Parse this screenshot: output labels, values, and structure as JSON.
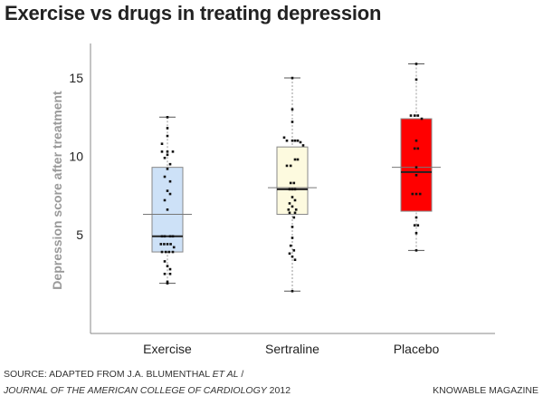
{
  "chart_data": {
    "type": "box",
    "title": "Exercise vs drugs in treating depression",
    "xlabel": "",
    "ylabel": "Depression score after treatment",
    "ylim": [
      -1.3,
      17.2
    ],
    "yticks": [
      5,
      10,
      15
    ],
    "grid": false,
    "categories": [
      "Exercise",
      "Sertraline",
      "Placebo"
    ],
    "series": [
      {
        "name": "Exercise",
        "color": "#cde1f7",
        "whisker_low": 1.9,
        "q1": 3.9,
        "median": 4.9,
        "mean": 6.3,
        "q3": 9.3,
        "whisker_high": 12.5,
        "points": [
          12.5,
          11.8,
          11.3,
          10.8,
          10.3,
          10.3,
          10.3,
          10.1,
          9.9,
          9.5,
          9.2,
          8.7,
          8.4,
          7.8,
          7.6,
          7.2,
          6.6,
          4.9,
          4.9,
          4.9,
          4.9,
          4.4,
          4.4,
          4.4,
          4.4,
          4.2,
          3.9,
          3.9,
          3.9,
          3.9,
          3.3,
          3.0,
          2.8,
          2.5,
          2.5,
          2.0,
          1.9
        ],
        "point_offsets": [
          0,
          0,
          0,
          -1,
          -1,
          0,
          1,
          0,
          -0.5,
          0.5,
          0,
          -0.5,
          0.5,
          0,
          0.5,
          -0.5,
          0,
          -1,
          -0.5,
          0.5,
          1,
          -1.2,
          -0.6,
          0,
          0.6,
          1.2,
          -1,
          -0.3,
          0.3,
          1,
          -0.5,
          0,
          0.5,
          -0.5,
          0.5,
          0,
          0
        ]
      },
      {
        "name": "Sertraline",
        "color": "#fdfadf",
        "whisker_low": 1.4,
        "q1": 6.3,
        "median": 7.9,
        "mean": 8.0,
        "q3": 10.6,
        "whisker_high": 15.0,
        "points": [
          15.0,
          13.0,
          12.2,
          11.2,
          11.0,
          11.0,
          11.0,
          11.0,
          10.9,
          10.7,
          9.8,
          9.8,
          9.4,
          9.4,
          8.3,
          8.3,
          7.9,
          7.9,
          7.9,
          7.4,
          7.2,
          7.0,
          6.8,
          6.6,
          6.6,
          6.4,
          6.4,
          6.1,
          5.5,
          4.8,
          4.3,
          4.0,
          3.8,
          3.6,
          3.4,
          1.4
        ],
        "point_offsets": [
          0,
          0,
          0,
          -1.5,
          -1,
          0,
          0.5,
          1,
          1.5,
          2,
          0.5,
          1,
          -1,
          -0.3,
          -0.3,
          0.3,
          -0.5,
          0,
          0.5,
          0,
          0.5,
          -0.5,
          0,
          -0.7,
          0.7,
          -0.5,
          0.5,
          0.3,
          0,
          0,
          -0.3,
          0.3,
          -0.5,
          0,
          0.5,
          0
        ]
      },
      {
        "name": "Placebo",
        "color": "#ff0000",
        "whisker_low": 4.0,
        "q1": 6.5,
        "median": 9.0,
        "mean": 9.3,
        "q3": 12.4,
        "whisker_high": 15.9,
        "points": [
          15.9,
          14.9,
          12.6,
          12.6,
          12.6,
          12.4,
          11.0,
          10.5,
          10.5,
          9.3,
          8.8,
          7.6,
          7.6,
          7.6,
          6.1,
          5.6,
          5.6,
          5.1,
          4.0
        ],
        "point_offsets": [
          0,
          0,
          -1,
          -0.3,
          0.3,
          1,
          0,
          -0.3,
          0.3,
          0,
          0,
          -0.7,
          0,
          0.7,
          0,
          -0.3,
          0.3,
          0,
          0
        ]
      }
    ]
  },
  "footer": {
    "source_line1_prefix": "SOURCE: ADAPTED FROM J.A. BLUMENTHAL ",
    "source_line1_italic": "ET AL",
    "source_line1_suffix": " /",
    "source_line2_italic": "JOURNAL OF THE AMERICAN COLLEGE OF CARDIOLOGY",
    "source_line2_suffix": " 2012",
    "credit": "KNOWABLE MAGAZINE"
  }
}
